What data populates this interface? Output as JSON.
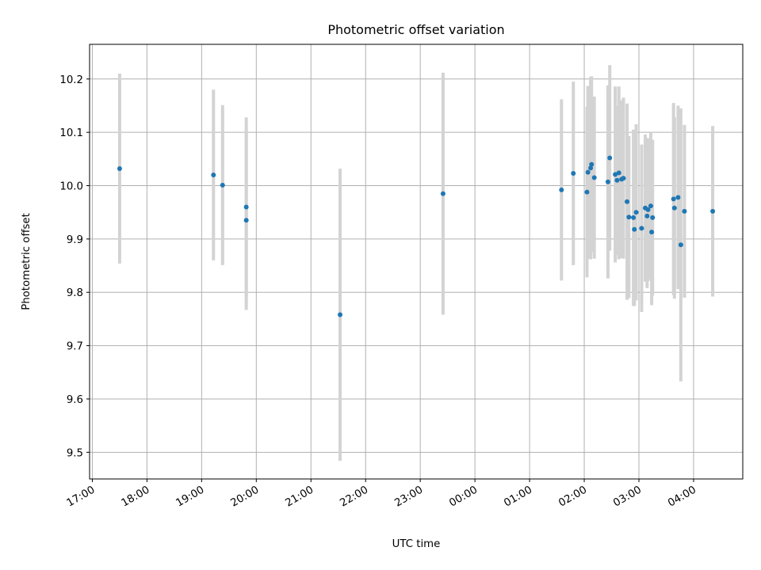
{
  "chart_data": {
    "type": "scatter",
    "title": "Photometric offset variation",
    "xlabel": "UTC time",
    "ylabel": "Photometric offset",
    "x_is_time": true,
    "time_start": "17:00",
    "xlim": [
      "16:57",
      "04:54"
    ],
    "ylim": [
      9.45,
      10.265
    ],
    "grid": true,
    "x_ticks": [
      "17:00",
      "18:00",
      "19:00",
      "20:00",
      "21:00",
      "22:00",
      "23:00",
      "00:00",
      "01:00",
      "02:00",
      "03:00",
      "04:00"
    ],
    "y_ticks": [
      "9.5",
      "9.6",
      "9.7",
      "9.8",
      "9.9",
      "10.0",
      "10.1",
      "10.2"
    ],
    "point_color": "#1f77b4",
    "errorbar_color": "#d3d3d3",
    "points": [
      {
        "t": "17:30",
        "y": 10.032,
        "err": 0.178
      },
      {
        "t": "19:13",
        "y": 10.02,
        "err": 0.16
      },
      {
        "t": "19:23",
        "y": 10.001,
        "err": 0.15
      },
      {
        "t": "19:49",
        "y": 9.96,
        "err": 0.168
      },
      {
        "t": "19:49",
        "y": 9.935,
        "err": 0.168
      },
      {
        "t": "21:32",
        "y": 9.758,
        "err": 0.274
      },
      {
        "t": "23:25",
        "y": 9.985,
        "err": 0.227
      },
      {
        "t": "01:35",
        "y": 9.992,
        "err": 0.17
      },
      {
        "t": "01:48",
        "y": 10.023,
        "err": 0.172
      },
      {
        "t": "02:03",
        "y": 9.988,
        "err": 0.16
      },
      {
        "t": "02:04",
        "y": 10.025,
        "err": 0.162
      },
      {
        "t": "02:07",
        "y": 10.033,
        "err": 0.171
      },
      {
        "t": "02:08",
        "y": 10.04,
        "err": 0.165
      },
      {
        "t": "02:11",
        "y": 10.015,
        "err": 0.152
      },
      {
        "t": "02:26",
        "y": 10.007,
        "err": 0.181
      },
      {
        "t": "02:28",
        "y": 10.052,
        "err": 0.174
      },
      {
        "t": "02:34",
        "y": 10.021,
        "err": 0.165
      },
      {
        "t": "02:36",
        "y": 10.01,
        "err": 0.14
      },
      {
        "t": "02:38",
        "y": 10.024,
        "err": 0.162
      },
      {
        "t": "02:41",
        "y": 10.012,
        "err": 0.148
      },
      {
        "t": "02:43",
        "y": 10.014,
        "err": 0.151
      },
      {
        "t": "02:47",
        "y": 9.97,
        "err": 0.184
      },
      {
        "t": "02:49",
        "y": 9.941,
        "err": 0.152
      },
      {
        "t": "02:54",
        "y": 9.94,
        "err": 0.165
      },
      {
        "t": "02:55",
        "y": 9.918,
        "err": 0.144
      },
      {
        "t": "02:57",
        "y": 9.95,
        "err": 0.165
      },
      {
        "t": "03:03",
        "y": 9.92,
        "err": 0.157
      },
      {
        "t": "03:07",
        "y": 9.958,
        "err": 0.138
      },
      {
        "t": "03:09",
        "y": 9.943,
        "err": 0.135
      },
      {
        "t": "03:10",
        "y": 9.955,
        "err": 0.134
      },
      {
        "t": "03:13",
        "y": 9.962,
        "err": 0.138
      },
      {
        "t": "03:14",
        "y": 9.913,
        "err": 0.137
      },
      {
        "t": "03:15",
        "y": 9.94,
        "err": 0.146
      },
      {
        "t": "03:38",
        "y": 9.975,
        "err": 0.18
      },
      {
        "t": "03:39",
        "y": 9.958,
        "err": 0.17
      },
      {
        "t": "03:43",
        "y": 9.978,
        "err": 0.172
      },
      {
        "t": "03:46",
        "y": 9.889,
        "err": 0.256
      },
      {
        "t": "03:50",
        "y": 9.952,
        "err": 0.162
      },
      {
        "t": "04:21",
        "y": 9.952,
        "err": 0.16
      }
    ]
  }
}
